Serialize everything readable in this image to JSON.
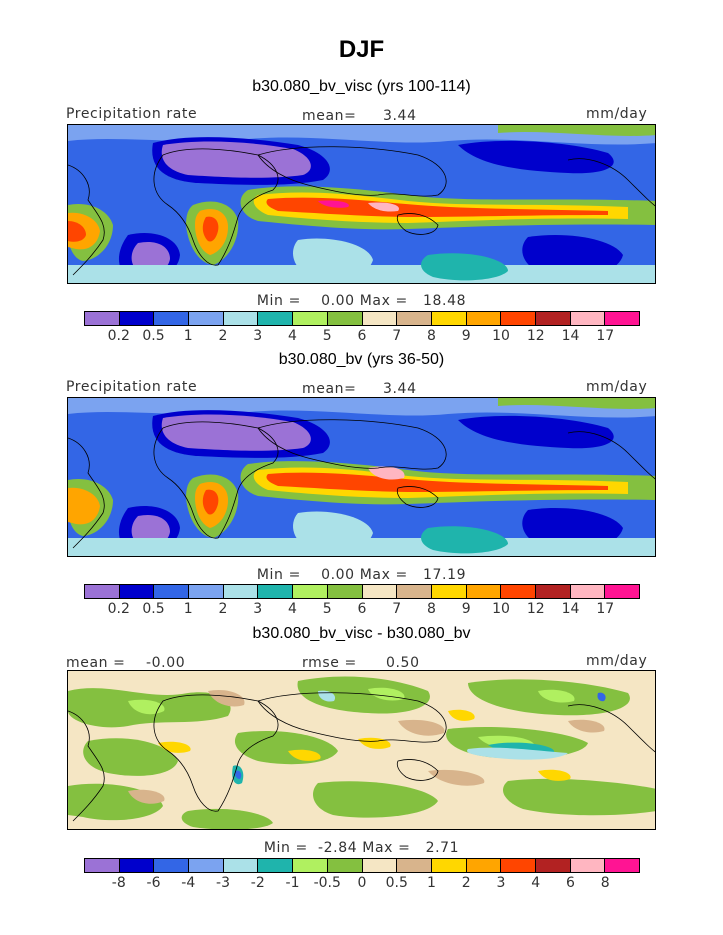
{
  "title": "DJF",
  "colors": {
    "precip": [
      "#9b72d6",
      "#0000cc",
      "#3366e6",
      "#7ba3f0",
      "#abe1e8",
      "#1fb4ac",
      "#b0f060",
      "#84c040",
      "#f5e6c4",
      "#d8b48c",
      "#ffd700",
      "#ffa500",
      "#ff4500",
      "#b22222",
      "#ffb6c1",
      "#ff1493"
    ],
    "diff": [
      "#9b72d6",
      "#0000cc",
      "#3366e6",
      "#7ba3f0",
      "#abe1e8",
      "#1fb4ac",
      "#b0f060",
      "#84c040",
      "#f5e6c4",
      "#d8b48c",
      "#ffd700",
      "#ffa500",
      "#ff4500",
      "#b22222",
      "#ffb6c1",
      "#ff1493"
    ]
  },
  "chart_data": [
    {
      "type": "heatmap",
      "title": "b30.080_bv_visc (yrs 100-114)",
      "variable": "Precipitation rate",
      "units": "mm/day",
      "mean_label": "mean=",
      "mean": "3.44",
      "min_label": "Min =",
      "min": "0.00",
      "max_label": "Max =",
      "max": "18.48",
      "contour_levels": [
        "0.2",
        "0.5",
        "1",
        "2",
        "3",
        "4",
        "5",
        "6",
        "7",
        "8",
        "9",
        "10",
        "12",
        "14",
        "17"
      ]
    },
    {
      "type": "heatmap",
      "title": "b30.080_bv (yrs 36-50)",
      "variable": "Precipitation rate",
      "units": "mm/day",
      "mean_label": "mean=",
      "mean": "3.44",
      "min_label": "Min =",
      "min": "0.00",
      "max_label": "Max =",
      "max": "17.19",
      "contour_levels": [
        "0.2",
        "0.5",
        "1",
        "2",
        "3",
        "4",
        "5",
        "6",
        "7",
        "8",
        "9",
        "10",
        "12",
        "14",
        "17"
      ]
    },
    {
      "type": "heatmap",
      "title": "b30.080_bv_visc - b30.080_bv",
      "units": "mm/day",
      "mean_label": "mean =",
      "mean": "-0.00",
      "rmse_label": "rmse =",
      "rmse": "0.50",
      "min_label": "Min =",
      "min": "-2.84",
      "max_label": "Max =",
      "max": "2.71",
      "contour_levels": [
        "-8",
        "-6",
        "-4",
        "-3",
        "-2",
        "-1",
        "-0.5",
        "0",
        "0.5",
        "1",
        "2",
        "3",
        "4",
        "6",
        "8"
      ]
    }
  ]
}
